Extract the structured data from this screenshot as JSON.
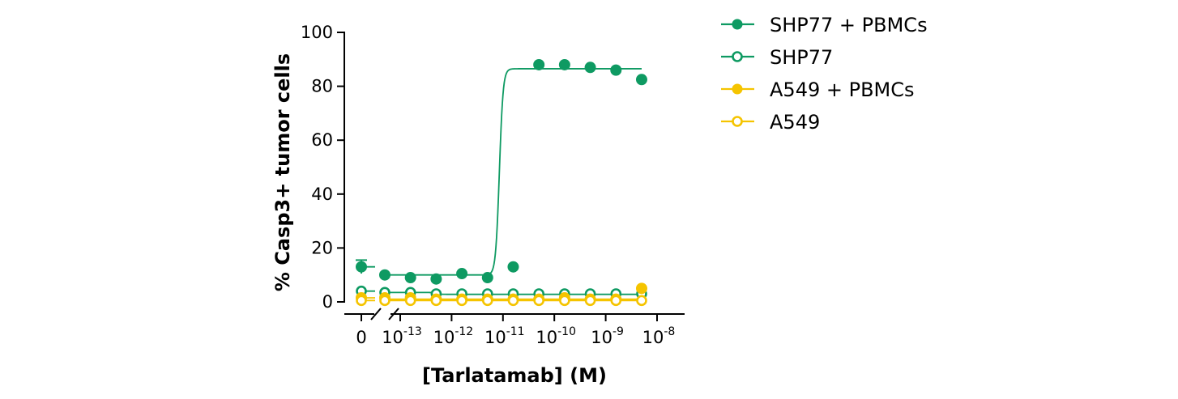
{
  "chart_data": {
    "type": "scatter",
    "xlabel": "[Tarlatamab] (M)",
    "ylabel": "% Casp3+ tumor cells",
    "ylim": [
      0,
      100
    ],
    "yticks": [
      0,
      20,
      40,
      60,
      80,
      100
    ],
    "x_zero_label": "0",
    "xtick_base": "10",
    "xtick_exponents": [
      "-13",
      "-12",
      "-11",
      "-10",
      "-9",
      "-8"
    ],
    "x_scale": "log10 with axis break after 0",
    "legend_position": "top-right",
    "series": [
      {
        "name": "SHP77 + PBMCs",
        "color": "#0e9a62",
        "marker": "filled-circle",
        "zero_value": 13,
        "zero_error": 2.5,
        "x_log10": [
          -13.3,
          -12.8,
          -12.3,
          -11.8,
          -11.3,
          -10.8,
          -10.3,
          -9.8,
          -9.3,
          -8.8,
          -8.3
        ],
        "values": [
          10,
          9,
          8.5,
          10.5,
          9,
          13,
          88,
          88,
          87,
          86,
          82.5
        ],
        "fit_bottom": 10,
        "fit_top": 86.5,
        "fit_log_ec50": -11.07
      },
      {
        "name": "SHP77",
        "color": "#0e9a62",
        "marker": "open-circle",
        "zero_value": 4,
        "x_log10": [
          -13.3,
          -12.8,
          -12.3,
          -11.8,
          -11.3,
          -10.8,
          -10.3,
          -9.8,
          -9.3,
          -8.8,
          -8.3
        ],
        "values": [
          3.5,
          3.5,
          3,
          3,
          3,
          3,
          3,
          3,
          3,
          3,
          3
        ],
        "fit_bottom": 3.5,
        "fit_top": 2.8,
        "fit_log_ec50": -12.3
      },
      {
        "name": "A549 + PBMCs",
        "color": "#f5c400",
        "marker": "filled-circle",
        "zero_value": 1.5,
        "x_log10": [
          -13.3,
          -12.8,
          -12.3,
          -11.8,
          -11.3,
          -10.8,
          -10.3,
          -9.8,
          -9.3,
          -8.8,
          -8.3
        ],
        "values": [
          1.5,
          1.5,
          1,
          1,
          1,
          1,
          1,
          1.5,
          1,
          1,
          5
        ],
        "fit_bottom": 1,
        "fit_top": 1,
        "fit_log_ec50": -10
      },
      {
        "name": "A549",
        "color": "#f5c400",
        "marker": "open-circle",
        "zero_value": 0.5,
        "x_log10": [
          -13.3,
          -12.8,
          -12.3,
          -11.8,
          -11.3,
          -10.8,
          -10.3,
          -9.8,
          -9.3,
          -8.8,
          -8.3
        ],
        "values": [
          0.5,
          0.5,
          0.5,
          0.5,
          0.5,
          0.5,
          0.5,
          0.5,
          0.5,
          0.5,
          0.5
        ],
        "fit_bottom": 0.5,
        "fit_top": 0.5,
        "fit_log_ec50": -10
      }
    ]
  }
}
